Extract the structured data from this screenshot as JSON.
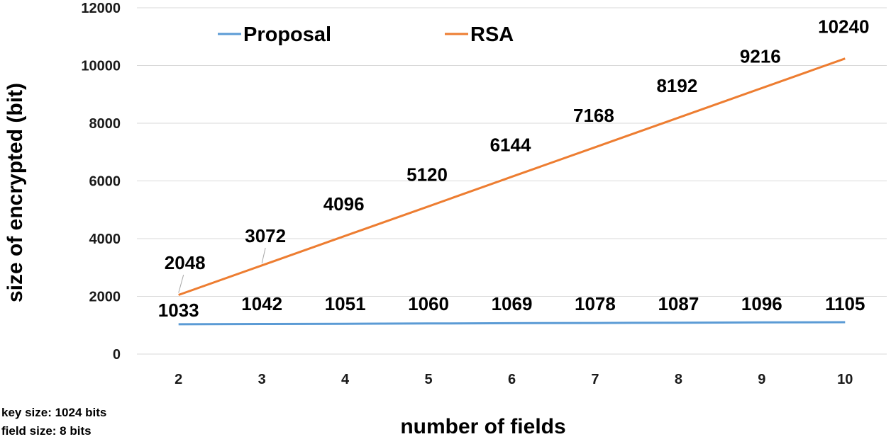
{
  "chart_data": {
    "type": "line",
    "categories": [
      "2",
      "3",
      "4",
      "5",
      "6",
      "7",
      "8",
      "9",
      "10"
    ],
    "series": [
      {
        "name": "Proposal",
        "color": "#5b9bd5",
        "values": [
          1033,
          1042,
          1051,
          1060,
          1069,
          1078,
          1087,
          1096,
          1105
        ],
        "labels": [
          "1033",
          "1042",
          "1051",
          "1060",
          "1069",
          "1078",
          "1087",
          "1096",
          "1105"
        ]
      },
      {
        "name": "RSA",
        "color": "#ed7d31",
        "values": [
          2048,
          3072,
          4096,
          5120,
          6144,
          7168,
          8192,
          9216,
          10240
        ],
        "labels": [
          "2048",
          "3072",
          "4096",
          "5120",
          "6144",
          "7168",
          "8192",
          "9216",
          "10240"
        ]
      }
    ],
    "xlabel": "number of fields",
    "ylabel": "size of encrypted (bit)",
    "ylim": [
      0,
      12000
    ],
    "yticks": [
      "0",
      "2000",
      "4000",
      "6000",
      "8000",
      "10000",
      "12000"
    ],
    "grid": true,
    "legend_position": "top"
  },
  "notes": {
    "key_size": "key size: 1024 bits",
    "field_size": "field size: 8 bits"
  }
}
